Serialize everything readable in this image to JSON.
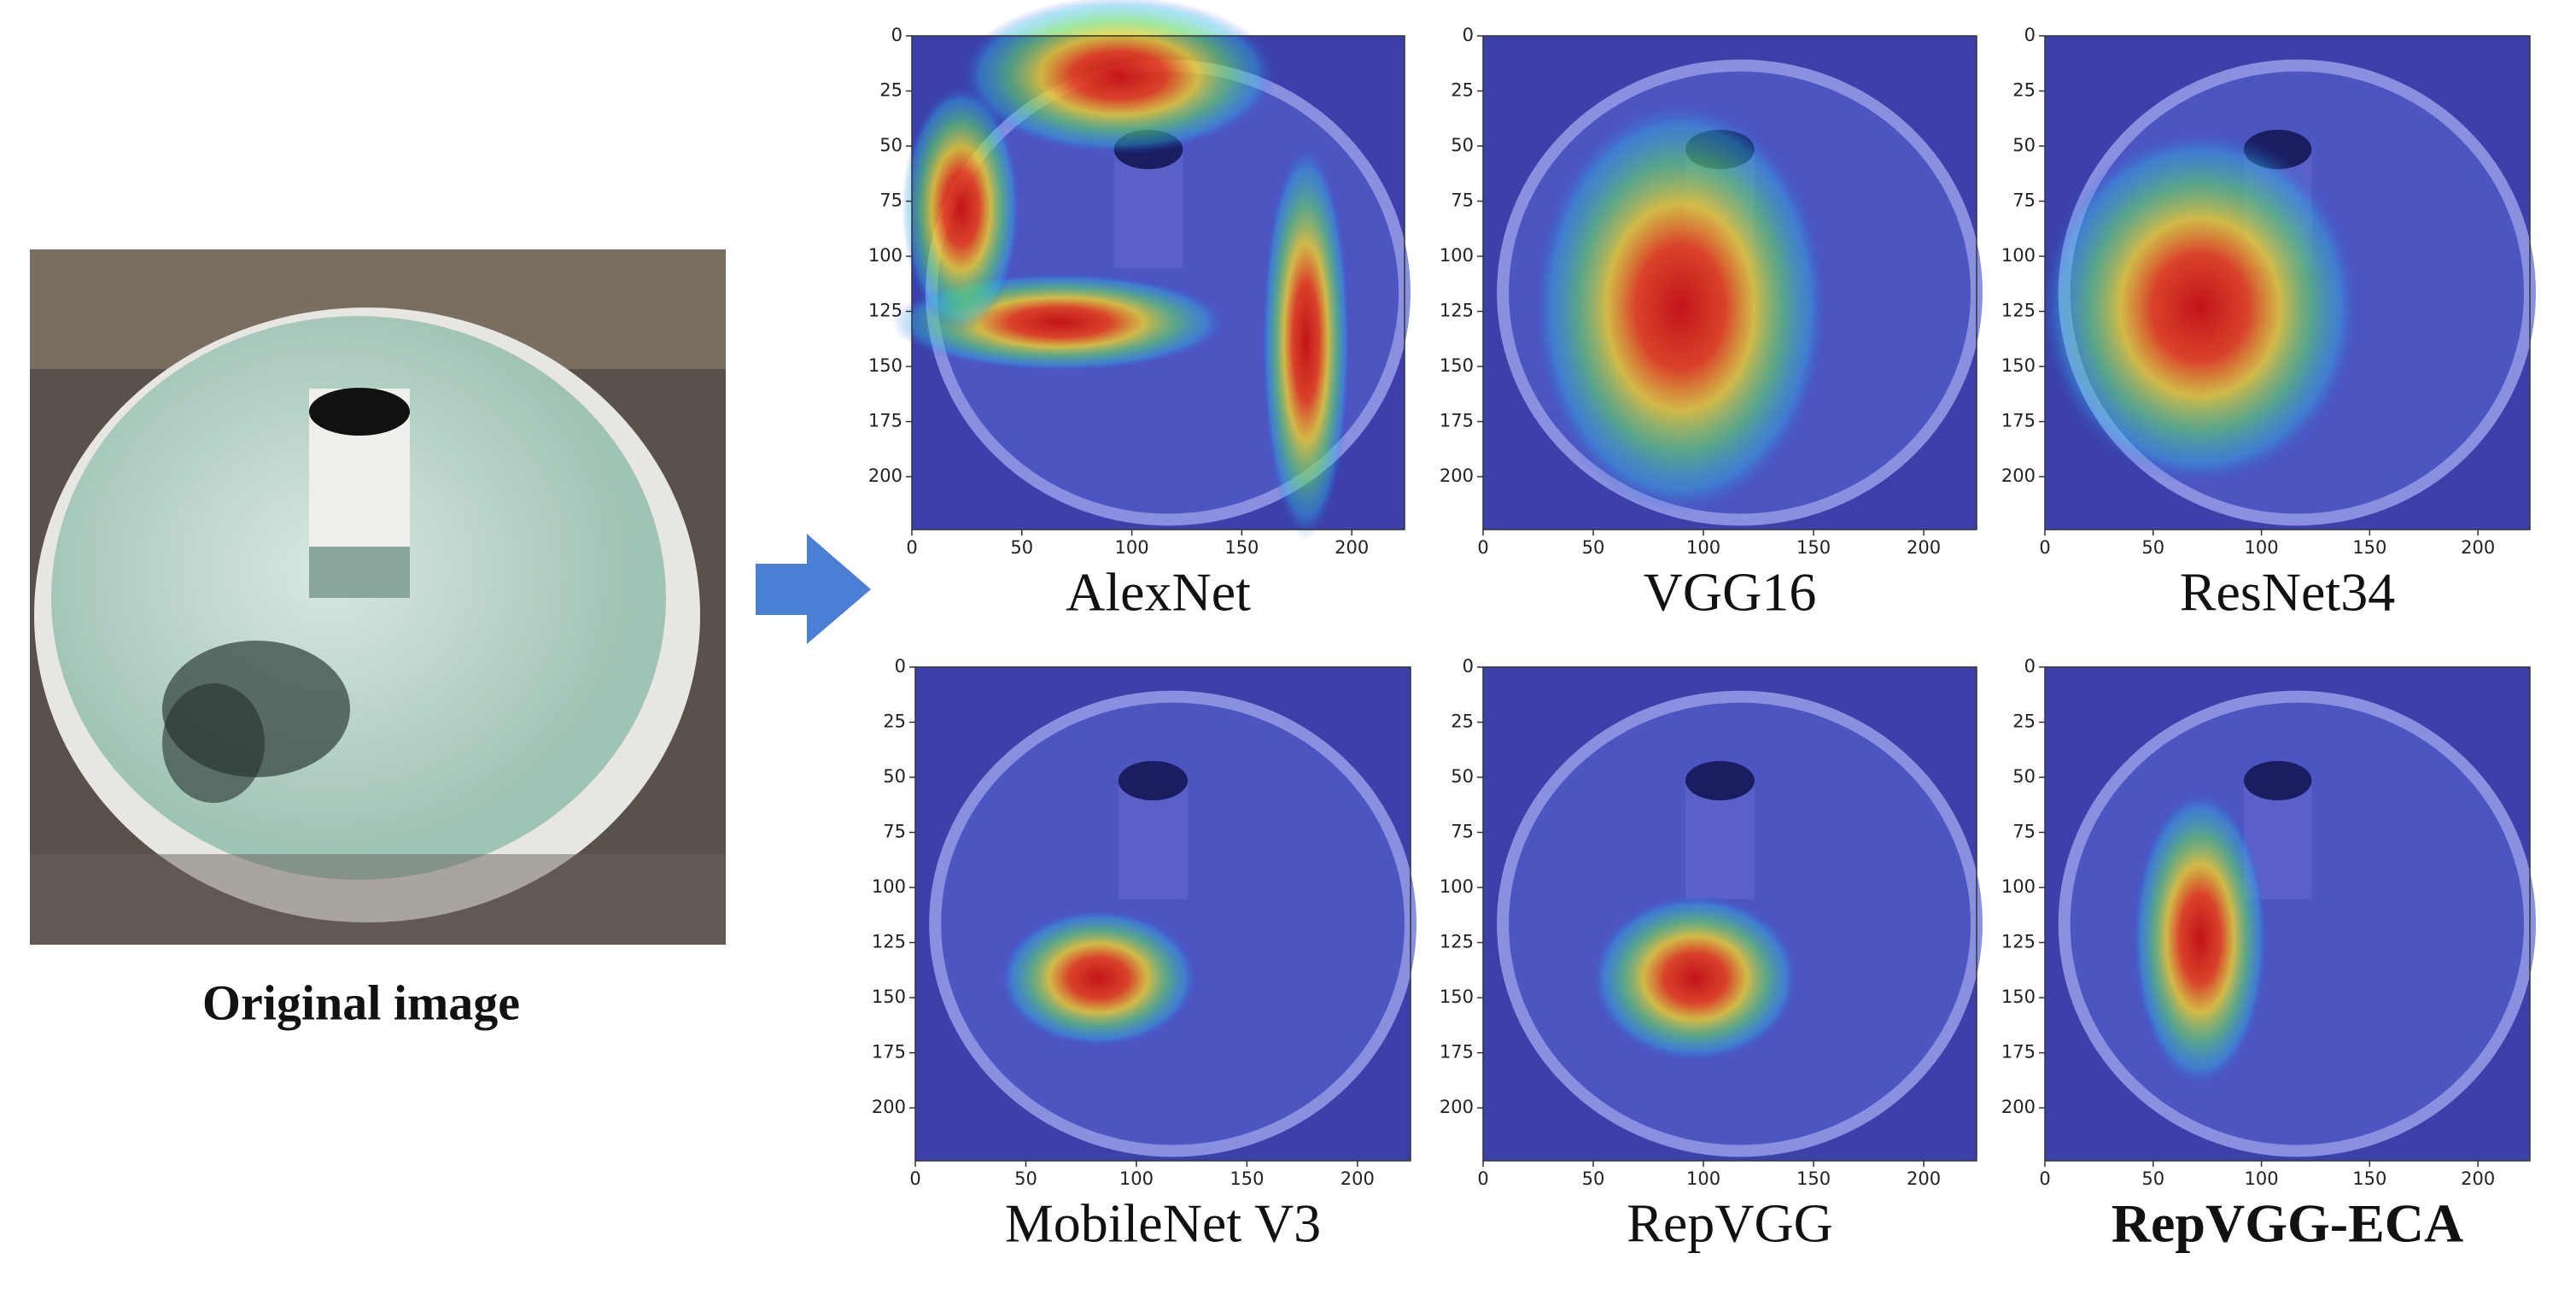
{
  "original": {
    "caption": "Original image"
  },
  "axes": {
    "xlim": [
      0,
      224
    ],
    "ylim": [
      0,
      224
    ],
    "y_inverted": true,
    "xticks": [
      0,
      50,
      100,
      150,
      200
    ],
    "yticks": [
      0,
      25,
      50,
      75,
      100,
      125,
      150,
      175,
      200
    ]
  },
  "panels": [
    {
      "title": "AlexNet",
      "bold": false
    },
    {
      "title": "VGG16",
      "bold": false
    },
    {
      "title": "ResNet34",
      "bold": false
    },
    {
      "title": "MobileNet V3",
      "bold": false
    },
    {
      "title": "RepVGG",
      "bold": false
    },
    {
      "title": "RepVGG-ECA",
      "bold": true
    }
  ]
}
